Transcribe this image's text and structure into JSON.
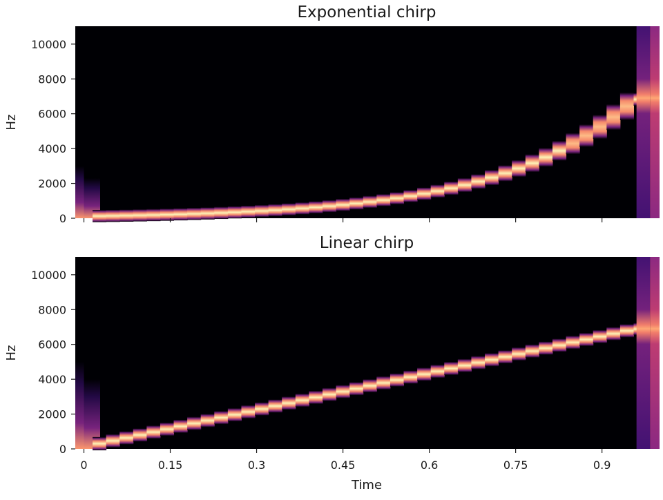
{
  "chart_data": [
    {
      "type": "heatmap",
      "title": "Exponential chirp",
      "ylabel": "Hz",
      "xlabel": "",
      "ylim": [
        0,
        11025
      ],
      "xlim": [
        -0.015,
        1.0
      ],
      "yticks": [
        0,
        2000,
        4000,
        6000,
        8000,
        10000
      ],
      "ytick_labels": [
        "0",
        "2000",
        "4000",
        "6000",
        "8000",
        "10000"
      ],
      "xticks": [
        0,
        0.15,
        0.3,
        0.45,
        0.6,
        0.75,
        0.9
      ],
      "xtick_labels": [],
      "colormap": [
        "#000004",
        "#3b0f70",
        "#8c2981",
        "#de4968",
        "#fe9f6d",
        "#fcfdbf"
      ],
      "sweep": {
        "t_start": 0,
        "t_end": 0.96,
        "f_start_hz": 110,
        "f_end_hz": 6900,
        "scale": "exponential"
      },
      "frame_width_s": 0.0235
    },
    {
      "type": "heatmap",
      "title": "Linear chirp",
      "ylabel": "Hz",
      "xlabel": "Time",
      "ylim": [
        0,
        11025
      ],
      "xlim": [
        -0.015,
        1.0
      ],
      "yticks": [
        0,
        2000,
        4000,
        6000,
        8000,
        10000
      ],
      "ytick_labels": [
        "0",
        "2000",
        "4000",
        "6000",
        "8000",
        "10000"
      ],
      "xticks": [
        0,
        0.15,
        0.3,
        0.45,
        0.6,
        0.75,
        0.9
      ],
      "xtick_labels": [
        "0",
        "0.15",
        "0.3",
        "0.45",
        "0.6",
        "0.75",
        "0.9"
      ],
      "colormap": [
        "#000004",
        "#3b0f70",
        "#8c2981",
        "#de4968",
        "#fe9f6d",
        "#fcfdbf"
      ],
      "sweep": {
        "t_start": 0,
        "t_end": 0.96,
        "f_start_hz": 110,
        "f_end_hz": 6900,
        "scale": "linear"
      },
      "frame_width_s": 0.0235
    }
  ]
}
